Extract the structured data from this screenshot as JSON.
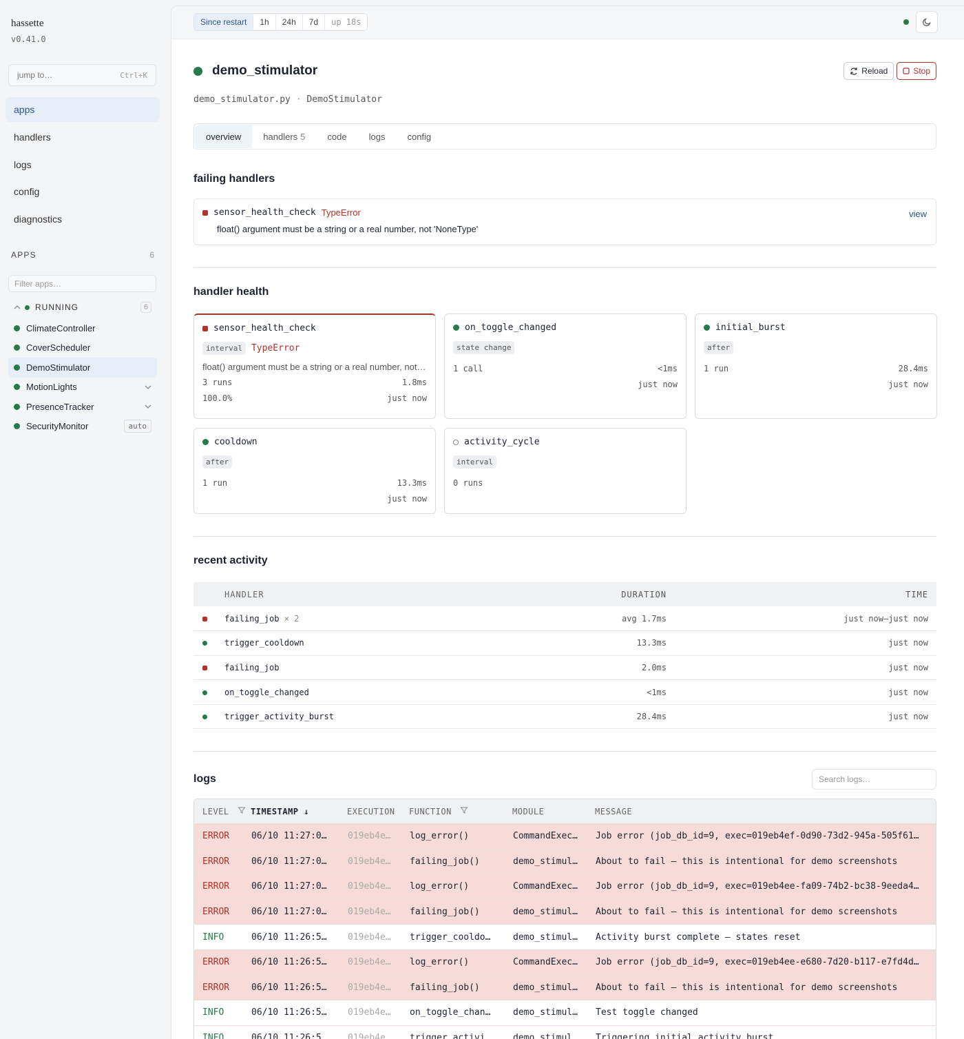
{
  "sidebar": {
    "brand": "hassette",
    "version": "v0.41.0",
    "search": {
      "placeholder": "jump to…",
      "shortcut": "Ctrl+K"
    },
    "nav": [
      {
        "label": "apps",
        "active": true
      },
      {
        "label": "handlers"
      },
      {
        "label": "logs"
      },
      {
        "label": "config"
      },
      {
        "label": "diagnostics"
      }
    ],
    "apps_heading": "APPS",
    "apps_count": "6",
    "filter_placeholder": "Filter apps…",
    "group": {
      "label": "RUNNING",
      "count": "6"
    },
    "apps": [
      {
        "name": "ClimateController"
      },
      {
        "name": "CoverScheduler"
      },
      {
        "name": "DemoStimulator",
        "active": true
      },
      {
        "name": "MotionLights",
        "expandable": true
      },
      {
        "name": "PresenceTracker",
        "expandable": true
      },
      {
        "name": "SecurityMonitor",
        "badge": "auto"
      }
    ]
  },
  "topbar": {
    "ranges": [
      "Since restart",
      "1h",
      "24h",
      "7d"
    ],
    "active_range": 0,
    "uptime": "up 18s"
  },
  "app": {
    "title": "demo_stimulator",
    "file": "demo_stimulator.py",
    "separator": "·",
    "class": "DemoStimulator",
    "actions": {
      "reload": "Reload",
      "stop": "Stop"
    },
    "tabs": [
      {
        "label": "overview",
        "active": true
      },
      {
        "label": "handlers",
        "count": "5"
      },
      {
        "label": "code"
      },
      {
        "label": "logs"
      },
      {
        "label": "config"
      }
    ]
  },
  "failing": {
    "heading": "failing handlers",
    "items": [
      {
        "name": "sensor_health_check",
        "error": "TypeError",
        "message": "float() argument must be a string or a real number, not 'NoneType'",
        "link": "view"
      }
    ]
  },
  "health": {
    "heading": "handler health",
    "cards": [
      {
        "name": "sensor_health_check",
        "status": "error",
        "tags": [
          "interval"
        ],
        "error": "TypeError",
        "message": "float() argument must be a string or a real number, not…",
        "stats": [
          {
            "left": "3 runs",
            "right": "1.8ms"
          },
          {
            "left": "100.0%",
            "right": "just now"
          }
        ]
      },
      {
        "name": "on_toggle_changed",
        "status": "ok",
        "tags": [
          "state change"
        ],
        "stats": [
          {
            "left": "1 call",
            "right": "<1ms"
          },
          {
            "right": "just now"
          }
        ]
      },
      {
        "name": "initial_burst",
        "status": "ok",
        "tags": [
          "after"
        ],
        "stats": [
          {
            "left": "1 run",
            "right": "28.4ms"
          },
          {
            "right": "just now"
          }
        ]
      },
      {
        "name": "cooldown",
        "status": "ok",
        "tags": [
          "after"
        ],
        "stats": [
          {
            "left": "1 run",
            "right": "13.3ms"
          },
          {
            "right": "just now"
          }
        ]
      },
      {
        "name": "activity_cycle",
        "status": "idle",
        "tags": [
          "interval"
        ],
        "stats": [
          {
            "left": "0 runs"
          }
        ]
      }
    ]
  },
  "activity": {
    "heading": "recent activity",
    "columns": [
      "HANDLER",
      "DURATION",
      "TIME"
    ],
    "rows": [
      {
        "status": "error",
        "handler": "failing_job",
        "multiplier": "× 2",
        "duration": "avg 1.7ms",
        "time": "just now–just now"
      },
      {
        "status": "ok",
        "handler": "trigger_cooldown",
        "duration": "13.3ms",
        "time": "just now"
      },
      {
        "status": "error",
        "handler": "failing_job",
        "duration": "2.0ms",
        "time": "just now"
      },
      {
        "status": "ok",
        "handler": "on_toggle_changed",
        "duration": "<1ms",
        "time": "just now"
      },
      {
        "status": "ok",
        "handler": "trigger_activity_burst",
        "duration": "28.4ms",
        "time": "just now"
      }
    ]
  },
  "logs": {
    "heading": "logs",
    "search_placeholder": "Search logs…",
    "columns": [
      {
        "label": "LEVEL",
        "filter": true
      },
      {
        "label": "TIMESTAMP ↓",
        "sorted": true
      },
      {
        "label": "EXECUTION"
      },
      {
        "label": "FUNCTION",
        "filter": true
      },
      {
        "label": "MODULE"
      },
      {
        "label": "MESSAGE"
      }
    ],
    "rows": [
      [
        "ERROR",
        "06/10 11:27:0…",
        "019eb4e…",
        "log_error()",
        "CommandExec…",
        "Job error (job_db_id=9, exec=019eb4ef-0d90-73d2-945a-505f61…"
      ],
      [
        "ERROR",
        "06/10 11:27:0…",
        "019eb4e…",
        "failing_job()",
        "demo_stimul…",
        "About to fail — this is intentional for demo screenshots"
      ],
      [
        "ERROR",
        "06/10 11:27:0…",
        "019eb4e…",
        "log_error()",
        "CommandExec…",
        "Job error (job_db_id=9, exec=019eb4ee-fa09-74b2-bc38-9eeda4…"
      ],
      [
        "ERROR",
        "06/10 11:27:0…",
        "019eb4e…",
        "failing_job()",
        "demo_stimul…",
        "About to fail — this is intentional for demo screenshots"
      ],
      [
        "INFO",
        "06/10 11:26:5…",
        "019eb4e…",
        "trigger_cooldo…",
        "demo_stimul…",
        "Activity burst complete — states reset"
      ],
      [
        "ERROR",
        "06/10 11:26:5…",
        "019eb4e…",
        "log_error()",
        "CommandExec…",
        "Job error (job_db_id=9, exec=019eb4ee-e680-7d20-b117-e7fd4d…"
      ],
      [
        "ERROR",
        "06/10 11:26:5…",
        "019eb4e…",
        "failing_job()",
        "demo_stimul…",
        "About to fail — this is intentional for demo screenshots"
      ],
      [
        "INFO",
        "06/10 11:26:5…",
        "019eb4e…",
        "on_toggle_chan…",
        "demo_stimul…",
        "Test toggle changed"
      ],
      [
        "INFO",
        "06/10 11:26:5…",
        "019eb4e…",
        "trigger_activi…",
        "demo_stimul…",
        "Triggering initial activity burst"
      ]
    ]
  }
}
